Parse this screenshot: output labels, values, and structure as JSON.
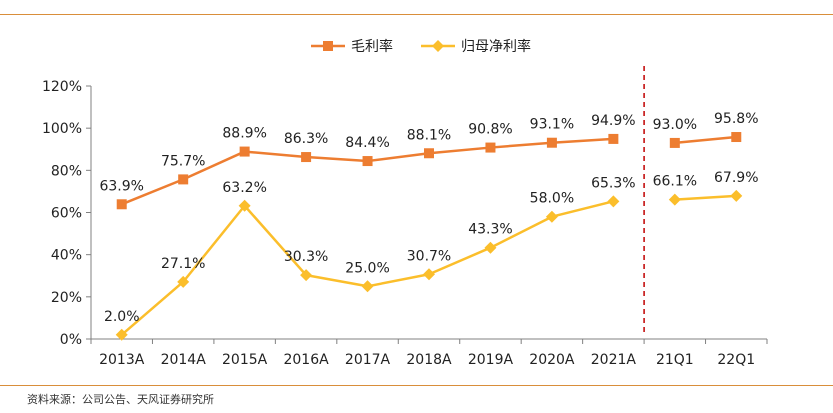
{
  "source_note": "资料来源：公司公告、天风证券研究所",
  "chart_data": {
    "type": "line",
    "categories": [
      "2013A",
      "2014A",
      "2015A",
      "2016A",
      "2017A",
      "2018A",
      "2019A",
      "2020A",
      "2021A",
      "21Q1",
      "22Q1"
    ],
    "series": [
      {
        "name": "毛利率",
        "color": "#ed7d31",
        "marker": "square",
        "values": [
          63.9,
          75.7,
          88.9,
          86.3,
          84.4,
          88.1,
          90.8,
          93.1,
          94.9,
          93.0,
          95.8
        ],
        "labels": [
          "63.9%",
          "75.7%",
          "88.9%",
          "86.3%",
          "84.4%",
          "88.1%",
          "90.8%",
          "93.1%",
          "94.9%",
          "93.0%",
          "95.8%"
        ]
      },
      {
        "name": "归母净利率",
        "color": "#fbbe2b",
        "marker": "diamond",
        "values": [
          2.0,
          27.1,
          63.2,
          30.3,
          25.0,
          30.7,
          43.3,
          58.0,
          65.3,
          66.1,
          67.9
        ],
        "labels": [
          "2.0%",
          "27.1%",
          "63.2%",
          "30.3%",
          "25.0%",
          "30.7%",
          "43.3%",
          "58.0%",
          "65.3%",
          "66.1%",
          "67.9%"
        ]
      }
    ],
    "line_breaks_after_index": 8,
    "divider_after_index": 8,
    "divider_color": "#c00000",
    "ylim": [
      0,
      120
    ],
    "yticks": [
      0,
      20,
      40,
      60,
      80,
      100,
      120
    ],
    "ytick_labels": [
      "0%",
      "20%",
      "40%",
      "60%",
      "80%",
      "100%",
      "120%"
    ],
    "legend_position": "top-center",
    "grid": false
  }
}
